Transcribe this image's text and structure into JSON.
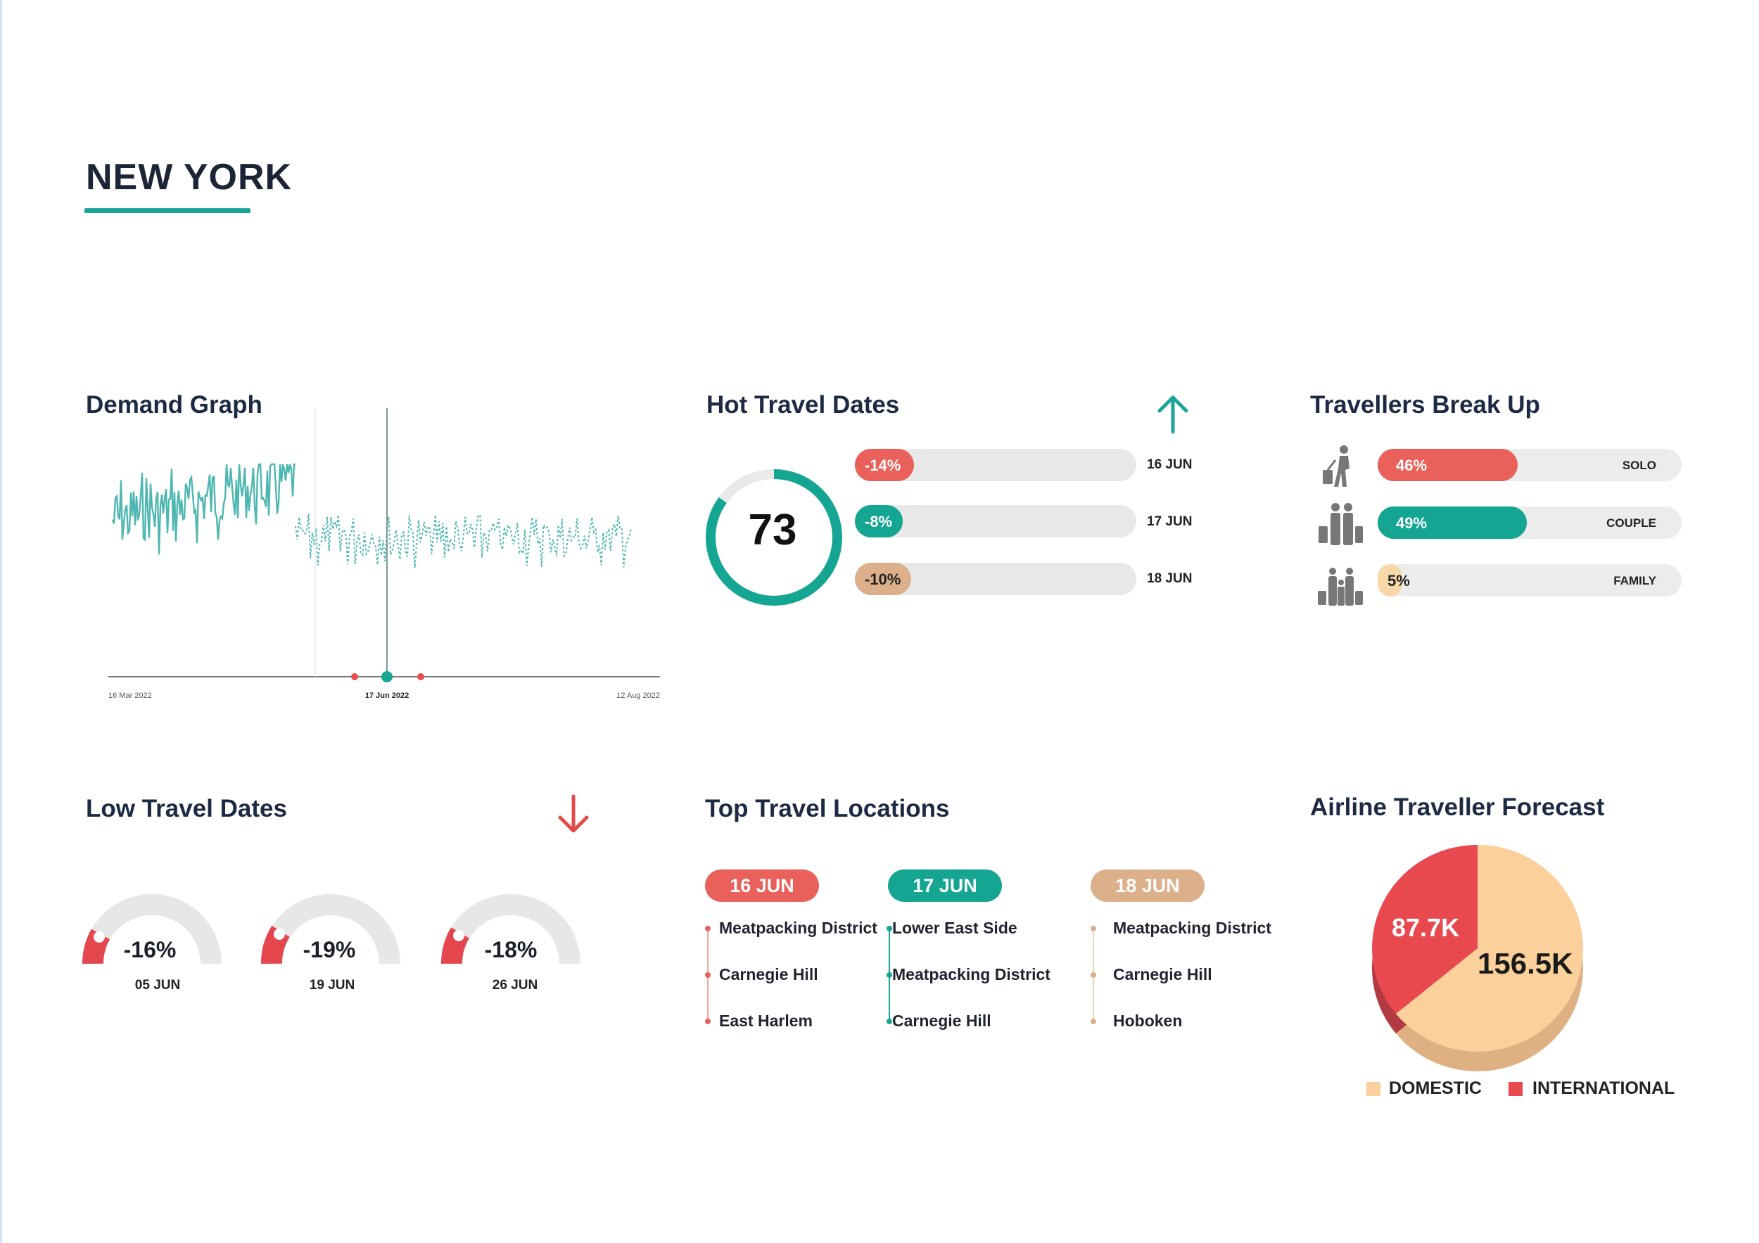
{
  "page": {
    "city": "NEW YORK"
  },
  "colors": {
    "accent": "#18a596",
    "red": "#e9605c",
    "peach": "#f7d09c",
    "tan": "#dcb08a",
    "gray": "#e8e8e8"
  },
  "demand_graph": {
    "title": "Demand Graph",
    "start_date": "16 Mar 2022",
    "selected_date": "17 Jun 2022",
    "end_date": "12 Aug 2022"
  },
  "hot_travel_dates": {
    "title": "Hot Travel Dates",
    "trend_icon": "arrow-up-icon",
    "score": "73",
    "score_value": 73,
    "rows": [
      {
        "pct": "-14%",
        "fraction": 0.21,
        "date": "16 JUN",
        "color": "#ea605b"
      },
      {
        "pct": "-8%",
        "fraction": 0.17,
        "date": "17 JUN",
        "color": "#14a593"
      },
      {
        "pct": "-10%",
        "fraction": 0.2,
        "date": "18 JUN",
        "color": "#dcb08a"
      }
    ]
  },
  "travellers": {
    "title": "Travellers Break Up",
    "rows": [
      {
        "pct": "46%",
        "fraction": 0.46,
        "label": "SOLO",
        "icon": "solo-traveller-icon",
        "color": "#ea605b"
      },
      {
        "pct": "49%",
        "fraction": 0.49,
        "label": "COUPLE",
        "icon": "couple-travellers-icon",
        "color": "#14a593"
      },
      {
        "pct": "5%",
        "fraction": 0.05,
        "label": "FAMILY",
        "icon": "family-travellers-icon",
        "color": "#f8d8a8"
      }
    ]
  },
  "low_travel_dates": {
    "title": "Low Travel Dates",
    "trend_icon": "arrow-down-icon",
    "gauges": [
      {
        "pct": "-16%",
        "date": "05 JUN"
      },
      {
        "pct": "-19%",
        "date": "19 JUN"
      },
      {
        "pct": "-18%",
        "date": "26 JUN"
      }
    ]
  },
  "top_travel_locations": {
    "title": "Top Travel Locations",
    "columns": [
      {
        "date": "16 JUN",
        "color": "#ea605b",
        "places": [
          "Meatpacking District",
          "Carnegie Hill",
          "East Harlem"
        ]
      },
      {
        "date": "17 JUN",
        "color": "#14a593",
        "places": [
          "Lower East Side",
          "Meatpacking District",
          "Carnegie Hill"
        ]
      },
      {
        "date": "18 JUN",
        "color": "#dcb08a",
        "places": [
          "Meatpacking District",
          "Carnegie Hill",
          "Hoboken"
        ]
      }
    ]
  },
  "airline_forecast": {
    "title": "Airline Traveller Forecast",
    "international_value": "87.7K",
    "domestic_value": "156.5K",
    "legend": {
      "domestic": "DOMESTIC",
      "international": "INTERNATIONAL"
    },
    "chart_data": {
      "type": "pie",
      "categories": [
        "DOMESTIC",
        "INTERNATIONAL"
      ],
      "values": [
        156.5,
        87.7
      ],
      "unit": "K",
      "colors": [
        "#fbd09b",
        "#e8494f"
      ]
    }
  }
}
